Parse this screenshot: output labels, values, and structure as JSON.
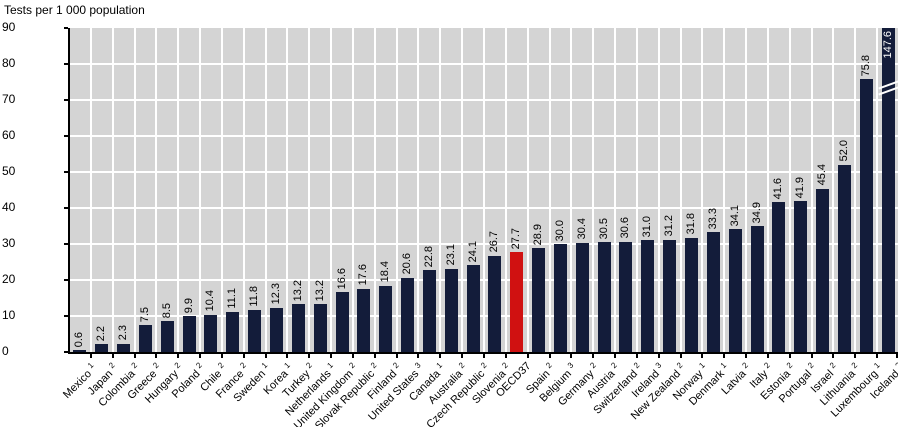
{
  "chart_data": {
    "type": "bar",
    "title": "Tests per 1 000 population",
    "ylabel": "Tests per 1 000 population",
    "xlabel": "",
    "ylim": [
      0,
      90
    ],
    "yticks": [
      0,
      10,
      20,
      30,
      40,
      50,
      60,
      70,
      80,
      90
    ],
    "grid": "horizontal-white-on-gray",
    "legend": "none",
    "bar_color": "#131c3a",
    "highlight_color": "#d01111",
    "band_color": "#d4d4d4",
    "axis_break_note": "Iceland bar is truncated with an axis break near the top of the plot",
    "points": [
      {
        "label": "Mexico",
        "sup": "1",
        "value": 0.6,
        "display": "0.6"
      },
      {
        "label": "Japan",
        "sup": "2",
        "value": 2.2,
        "display": "2.2"
      },
      {
        "label": "Colombia",
        "sup": "2",
        "value": 2.3,
        "display": "2.3"
      },
      {
        "label": "Greece",
        "sup": "2",
        "value": 7.5,
        "display": "7.5"
      },
      {
        "label": "Hungary",
        "sup": "2",
        "value": 8.5,
        "display": "8.5"
      },
      {
        "label": "Poland",
        "sup": "2",
        "value": 9.9,
        "display": "9.9"
      },
      {
        "label": "Chile",
        "sup": "2",
        "value": 10.4,
        "display": "10.4"
      },
      {
        "label": "France",
        "sup": "2",
        "value": 11.1,
        "display": "11.1"
      },
      {
        "label": "Sweden",
        "sup": "1",
        "value": 11.8,
        "display": "11.8"
      },
      {
        "label": "Korea",
        "sup": "1",
        "value": 12.3,
        "display": "12.3"
      },
      {
        "label": "Turkey",
        "sup": "2",
        "value": 13.2,
        "display": "13.2"
      },
      {
        "label": "Netherlands",
        "sup": "1",
        "value": 13.2,
        "display": "13.2"
      },
      {
        "label": "United Kingdom",
        "sup": "2",
        "value": 16.6,
        "display": "16.6"
      },
      {
        "label": "Slovak Republic",
        "sup": "2",
        "value": 17.6,
        "display": "17.6"
      },
      {
        "label": "Finland",
        "sup": "2",
        "value": 18.4,
        "display": "18.4"
      },
      {
        "label": "United States",
        "sup": "3",
        "value": 20.6,
        "display": "20.6"
      },
      {
        "label": "Canada",
        "sup": "1",
        "value": 22.8,
        "display": "22.8"
      },
      {
        "label": "Australia",
        "sup": "2",
        "value": 23.1,
        "display": "23.1"
      },
      {
        "label": "Czech Republic",
        "sup": "2",
        "value": 24.1,
        "display": "24.1"
      },
      {
        "label": "Slovenia",
        "sup": "2",
        "value": 26.7,
        "display": "26.7"
      },
      {
        "label": "OECD37",
        "sup": "",
        "value": 27.7,
        "display": "27.7",
        "highlight": true
      },
      {
        "label": "Spain",
        "sup": "2",
        "value": 28.9,
        "display": "28.9"
      },
      {
        "label": "Belgium",
        "sup": "3",
        "value": 30.0,
        "display": "30.0"
      },
      {
        "label": "Germany",
        "sup": "2",
        "value": 30.4,
        "display": "30.4"
      },
      {
        "label": "Austria",
        "sup": "2",
        "value": 30.5,
        "display": "30.5"
      },
      {
        "label": "Switzerland",
        "sup": "2",
        "value": 30.6,
        "display": "30.6"
      },
      {
        "label": "Ireland",
        "sup": "3",
        "value": 31.0,
        "display": "31.0"
      },
      {
        "label": "New Zealand",
        "sup": "2",
        "value": 31.2,
        "display": "31.2"
      },
      {
        "label": "Norway",
        "sup": "1",
        "value": 31.8,
        "display": "31.8"
      },
      {
        "label": "Denmark",
        "sup": "1",
        "value": 33.3,
        "display": "33.3"
      },
      {
        "label": "Latvia",
        "sup": "2",
        "value": 34.1,
        "display": "34.1"
      },
      {
        "label": "Italy",
        "sup": "2",
        "value": 34.9,
        "display": "34.9"
      },
      {
        "label": "Estonia",
        "sup": "2",
        "value": 41.6,
        "display": "41.6"
      },
      {
        "label": "Portugal",
        "sup": "2",
        "value": 41.9,
        "display": "41.9"
      },
      {
        "label": "Israel",
        "sup": "2",
        "value": 45.4,
        "display": "45.4"
      },
      {
        "label": "Lithuania",
        "sup": "2",
        "value": 52.0,
        "display": "52.0"
      },
      {
        "label": "Luxembourg",
        "sup": "1",
        "value": 75.8,
        "display": "75.8"
      },
      {
        "label": "Iceland",
        "sup": "2",
        "value": 147.6,
        "display": "147.6",
        "truncated": true
      }
    ]
  }
}
